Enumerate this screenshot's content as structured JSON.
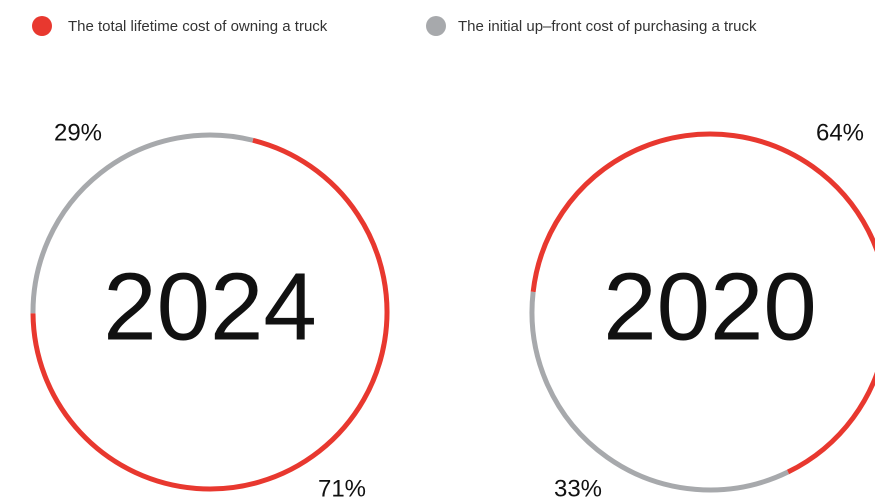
{
  "legend": {
    "items": [
      {
        "name": "The total lifetime cost of owning a truck",
        "color": "#e8382f"
      },
      {
        "name": "The initial up–front cost of purchasing a truck",
        "color": "#a7a9ac"
      }
    ]
  },
  "chart_data": [
    {
      "type": "donut",
      "center_label": "2024",
      "values": [
        71,
        29
      ],
      "value_labels": [
        "71%",
        "29%"
      ]
    },
    {
      "type": "donut",
      "center_label": "2020",
      "values": [
        64,
        33
      ],
      "value_labels": [
        "64%",
        "33%"
      ]
    }
  ]
}
